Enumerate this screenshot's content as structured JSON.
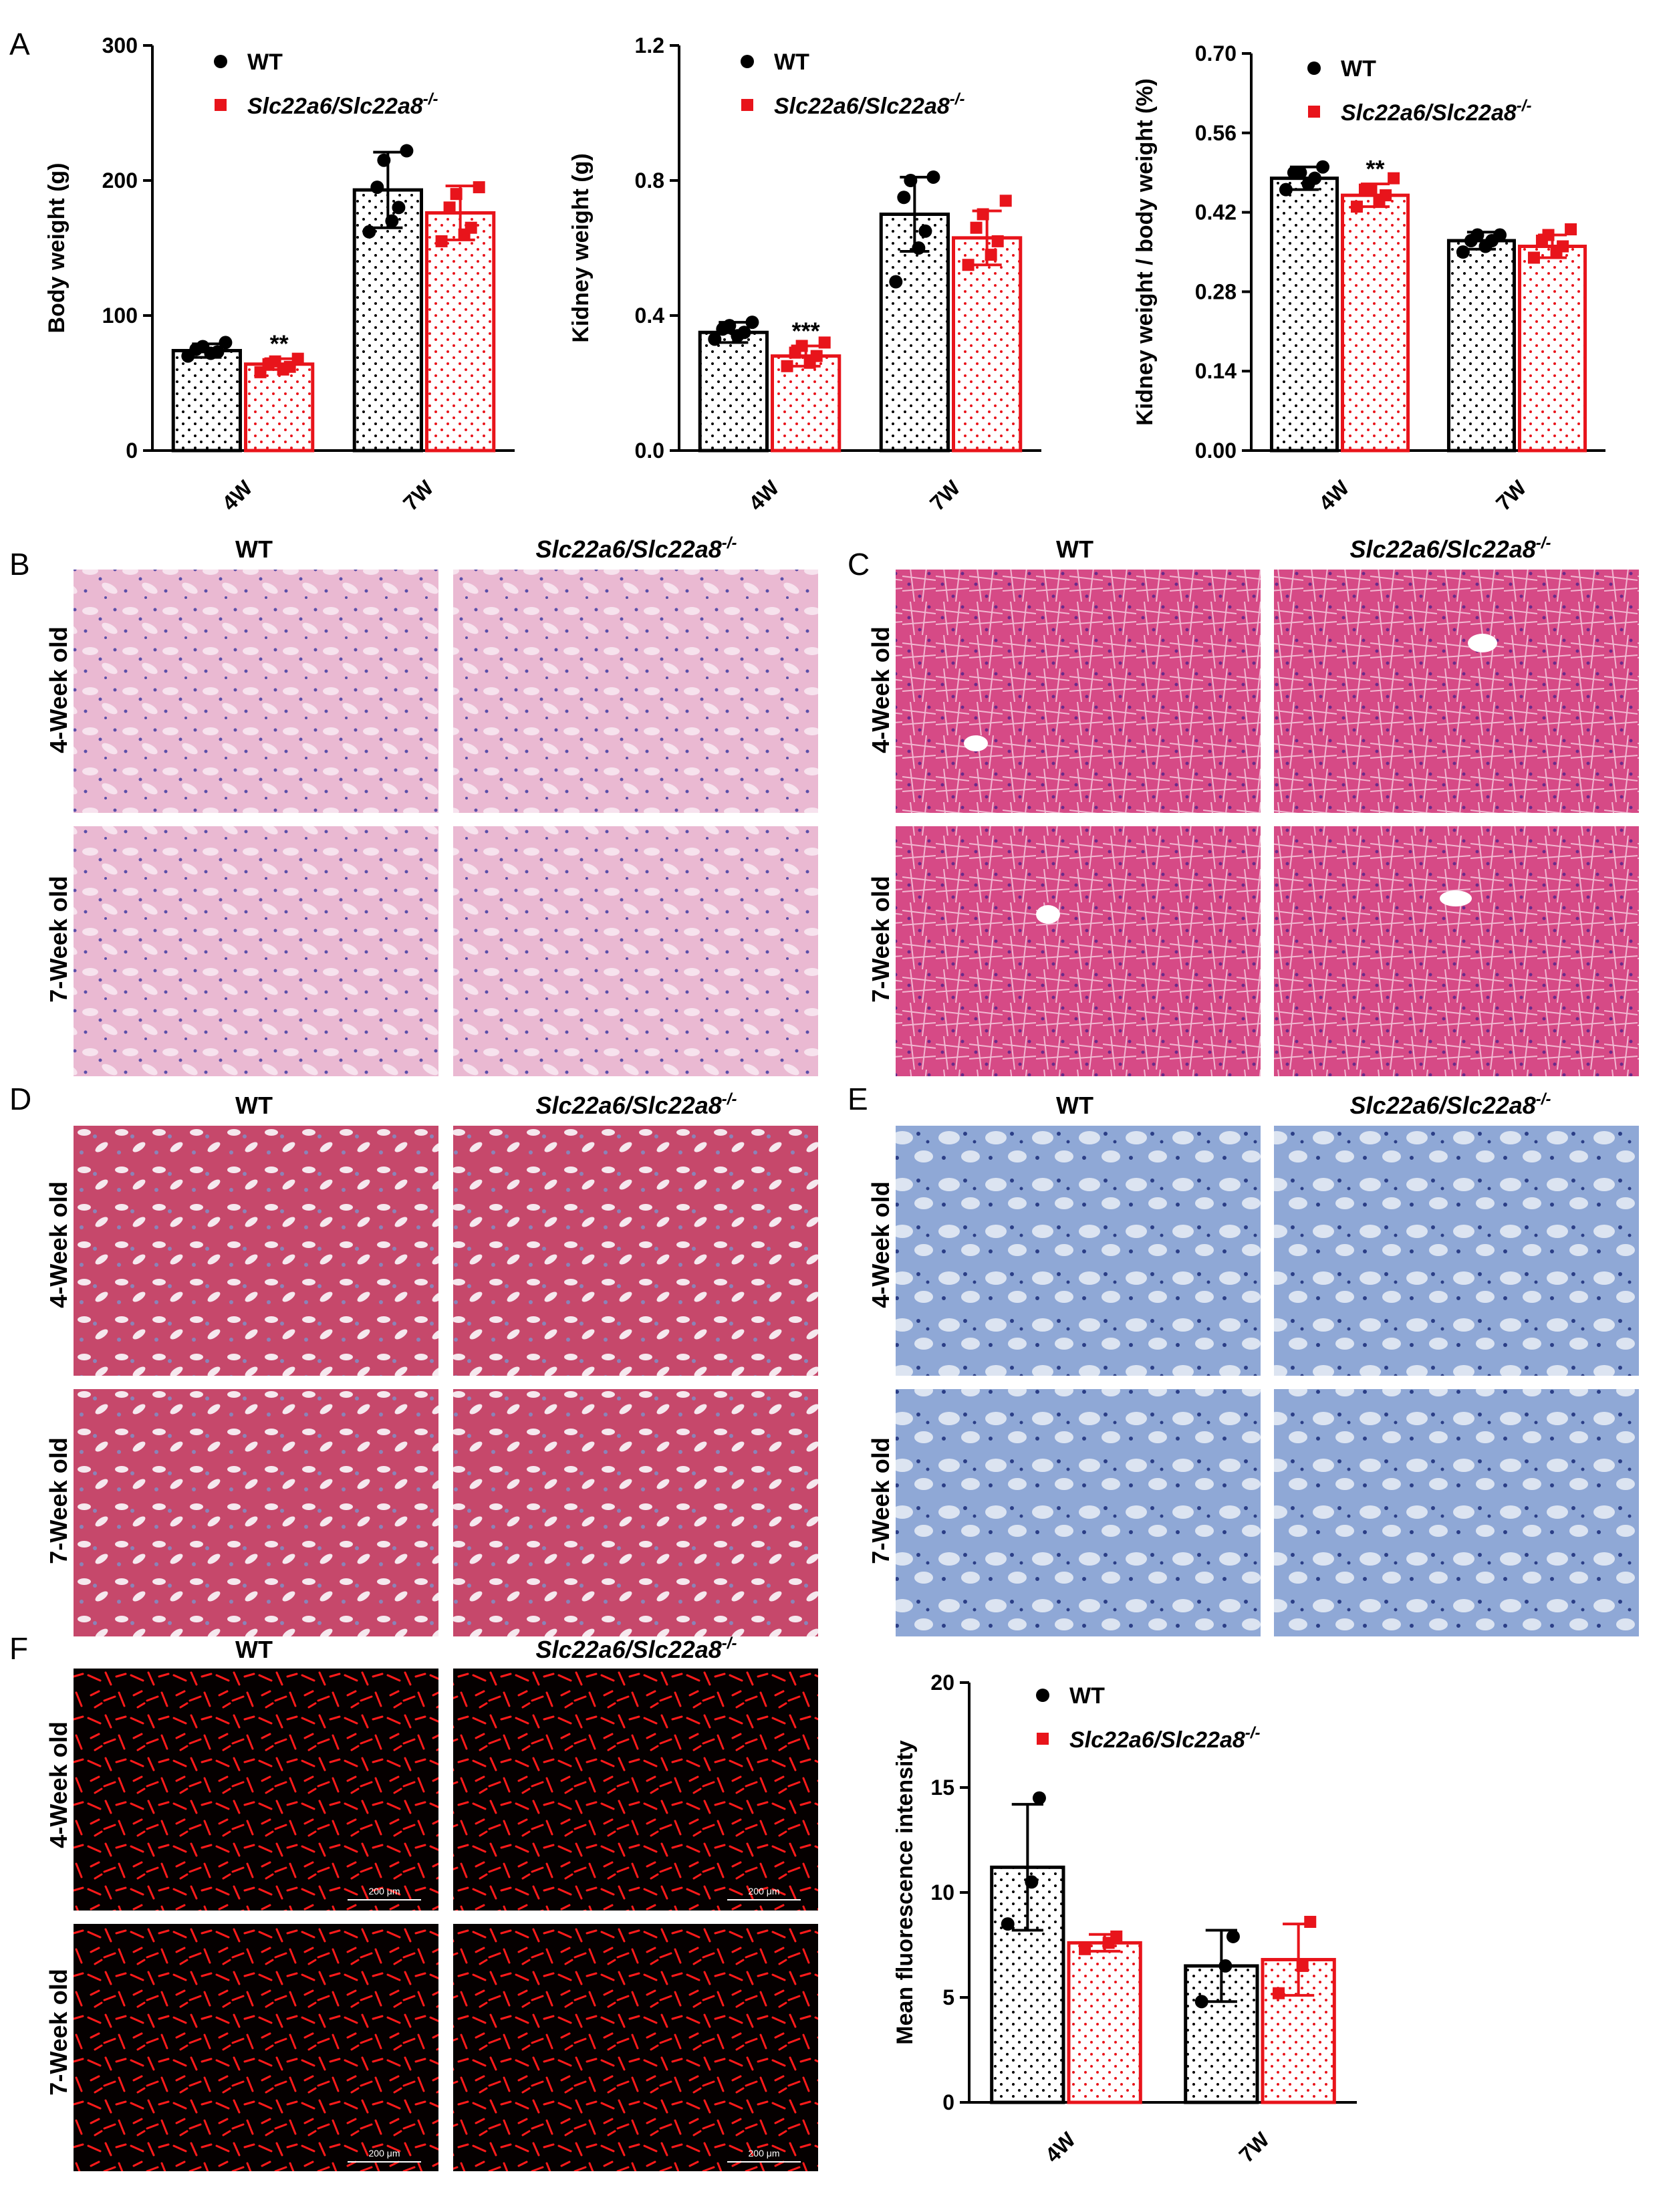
{
  "colors": {
    "wt": "#000000",
    "ko": "#e8141b",
    "he_kidney": "#e9b4cf",
    "he_liver": "#d4427f",
    "masson": "#c84a6c",
    "toluidine": "#6f8fc7",
    "fluor_bg": "#050000",
    "fluor_signal": "#ff1a1a"
  },
  "legend": {
    "wt": "WT",
    "ko_base": "Slc22a6/Slc22a8",
    "ko_sup": "-/-"
  },
  "panels": {
    "A": {
      "letter": "A"
    },
    "B": {
      "letter": "B",
      "col_wt": "WT",
      "col_ko": "Slc22a6/Slc22a8",
      "col_ko_sup": "-/-",
      "row1": "4-Week old",
      "row2": "7-Week old"
    },
    "C": {
      "letter": "C",
      "col_wt": "WT",
      "col_ko": "Slc22a6/Slc22a8",
      "col_ko_sup": "-/-",
      "row1": "4-Week old",
      "row2": "7-Week old"
    },
    "D": {
      "letter": "D",
      "col_wt": "WT",
      "col_ko": "Slc22a6/Slc22a8",
      "col_ko_sup": "-/-",
      "row1": "4-Week old",
      "row2": "7-Week old"
    },
    "E": {
      "letter": "E",
      "col_wt": "WT",
      "col_ko": "Slc22a6/Slc22a8",
      "col_ko_sup": "-/-",
      "row1": "4-Week old",
      "row2": "7-Week old"
    },
    "F": {
      "letter": "F",
      "col_wt": "WT",
      "col_ko": "Slc22a6/Slc22a8",
      "col_ko_sup": "-/-",
      "row1": "4-Week old",
      "row2": "7-Week old",
      "scale_bar": "200 μm"
    }
  },
  "chart_data": [
    {
      "id": "body-weight",
      "type": "bar",
      "categories": [
        "4W",
        "7W"
      ],
      "ylabel": "Body weight (g)",
      "ylim": [
        0,
        300
      ],
      "yticks": [
        "0",
        "100",
        "200",
        "300"
      ],
      "series": [
        {
          "name": "WT",
          "values": [
            74,
            193
          ],
          "sd": [
            5,
            28
          ],
          "points": [
            [
              70,
              72,
              73,
              75,
              77,
              80
            ],
            [
              162,
              170,
              180,
              195,
              215,
              222
            ]
          ]
        },
        {
          "name": "Slc22a6/Slc22a8-/-",
          "values": [
            64,
            176
          ],
          "sd": [
            4,
            20
          ],
          "points": [
            [
              58,
              60,
              62,
              64,
              66,
              68
            ],
            [
              155,
              160,
              165,
              180,
              190,
              195
            ]
          ]
        }
      ],
      "annotations": [
        {
          "category": "4W",
          "series": 1,
          "text": "**"
        }
      ]
    },
    {
      "id": "kidney-weight",
      "type": "bar",
      "categories": [
        "4W",
        "7W"
      ],
      "ylabel": "Kidney weight (g)",
      "ylim": [
        0,
        1.2
      ],
      "yticks": [
        "0.0",
        "0.4",
        "0.8",
        "1.2"
      ],
      "series": [
        {
          "name": "WT",
          "values": [
            0.35,
            0.7
          ],
          "sd": [
            0.03,
            0.11
          ],
          "points": [
            [
              0.33,
              0.34,
              0.35,
              0.36,
              0.37,
              0.38
            ],
            [
              0.5,
              0.6,
              0.65,
              0.75,
              0.8,
              0.81
            ]
          ]
        },
        {
          "name": "Slc22a6/Slc22a8-/-",
          "values": [
            0.28,
            0.63
          ],
          "sd": [
            0.03,
            0.08
          ],
          "points": [
            [
              0.25,
              0.26,
              0.28,
              0.29,
              0.31,
              0.32
            ],
            [
              0.55,
              0.58,
              0.62,
              0.66,
              0.7,
              0.74
            ]
          ]
        }
      ],
      "annotations": [
        {
          "category": "4W",
          "series": 1,
          "text": "***"
        }
      ]
    },
    {
      "id": "kidney-body-ratio",
      "type": "bar",
      "categories": [
        "4W",
        "7W"
      ],
      "ylabel": "Kidney weight / body weight (%)",
      "ylim": [
        0,
        0.7
      ],
      "yticks": [
        "0.00",
        "0.14",
        "0.28",
        "0.42",
        "0.56",
        "0.70"
      ],
      "series": [
        {
          "name": "WT",
          "values": [
            0.48,
            0.37
          ],
          "sd": [
            0.02,
            0.015
          ],
          "points": [
            [
              0.46,
              0.47,
              0.48,
              0.49,
              0.49,
              0.5
            ],
            [
              0.35,
              0.36,
              0.37,
              0.37,
              0.38,
              0.38
            ]
          ]
        },
        {
          "name": "Slc22a6/Slc22a8-/-",
          "values": [
            0.45,
            0.36
          ],
          "sd": [
            0.02,
            0.02
          ],
          "points": [
            [
              0.43,
              0.44,
              0.45,
              0.46,
              0.46,
              0.48
            ],
            [
              0.34,
              0.35,
              0.36,
              0.37,
              0.38,
              0.39
            ]
          ]
        }
      ],
      "annotations": [
        {
          "category": "4W",
          "series": 1,
          "text": "**"
        }
      ]
    },
    {
      "id": "fluorescence",
      "type": "bar",
      "categories": [
        "4W",
        "7W"
      ],
      "ylabel": "Mean fluorescence intensity",
      "ylim": [
        0,
        20
      ],
      "yticks": [
        "0",
        "5",
        "10",
        "15",
        "20"
      ],
      "series": [
        {
          "name": "WT",
          "values": [
            11.2,
            6.5
          ],
          "sd": [
            3.0,
            1.7
          ],
          "points": [
            [
              8.5,
              10.5,
              14.5
            ],
            [
              4.8,
              6.5,
              7.9
            ]
          ]
        },
        {
          "name": "Slc22a6/Slc22a8-/-",
          "values": [
            7.6,
            6.8
          ],
          "sd": [
            0.4,
            1.7
          ],
          "points": [
            [
              7.3,
              7.6,
              7.9
            ],
            [
              5.2,
              6.5,
              8.6
            ]
          ]
        }
      ],
      "annotations": []
    }
  ]
}
